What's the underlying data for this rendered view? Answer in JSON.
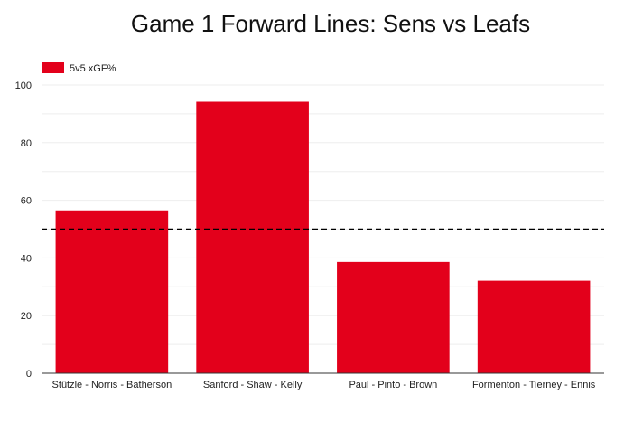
{
  "chart_data": {
    "type": "bar",
    "title": "Game 1 Forward Lines: Sens vs Leafs",
    "categories": [
      "Stützle - Norris - Batherson",
      "Sanford - Shaw - Kelly",
      "Paul - Pinto - Brown",
      "Formenton - Tierney - Ennis"
    ],
    "series": [
      {
        "name": "5v5 xGF%",
        "values": [
          56.5,
          94.2,
          38.6,
          32.1
        ]
      }
    ],
    "ylim": [
      0,
      100
    ],
    "yticks": [
      0,
      20,
      40,
      60,
      80,
      100
    ],
    "reference_line": 50,
    "reference_line_style": "dashed",
    "grid": true,
    "legend_position": "top-left",
    "xlabel": "",
    "ylabel": ""
  },
  "colors": {
    "bar": "#e3001b",
    "reference_line": "#000000",
    "grid": "#eeeeee",
    "axis": "#333333"
  }
}
